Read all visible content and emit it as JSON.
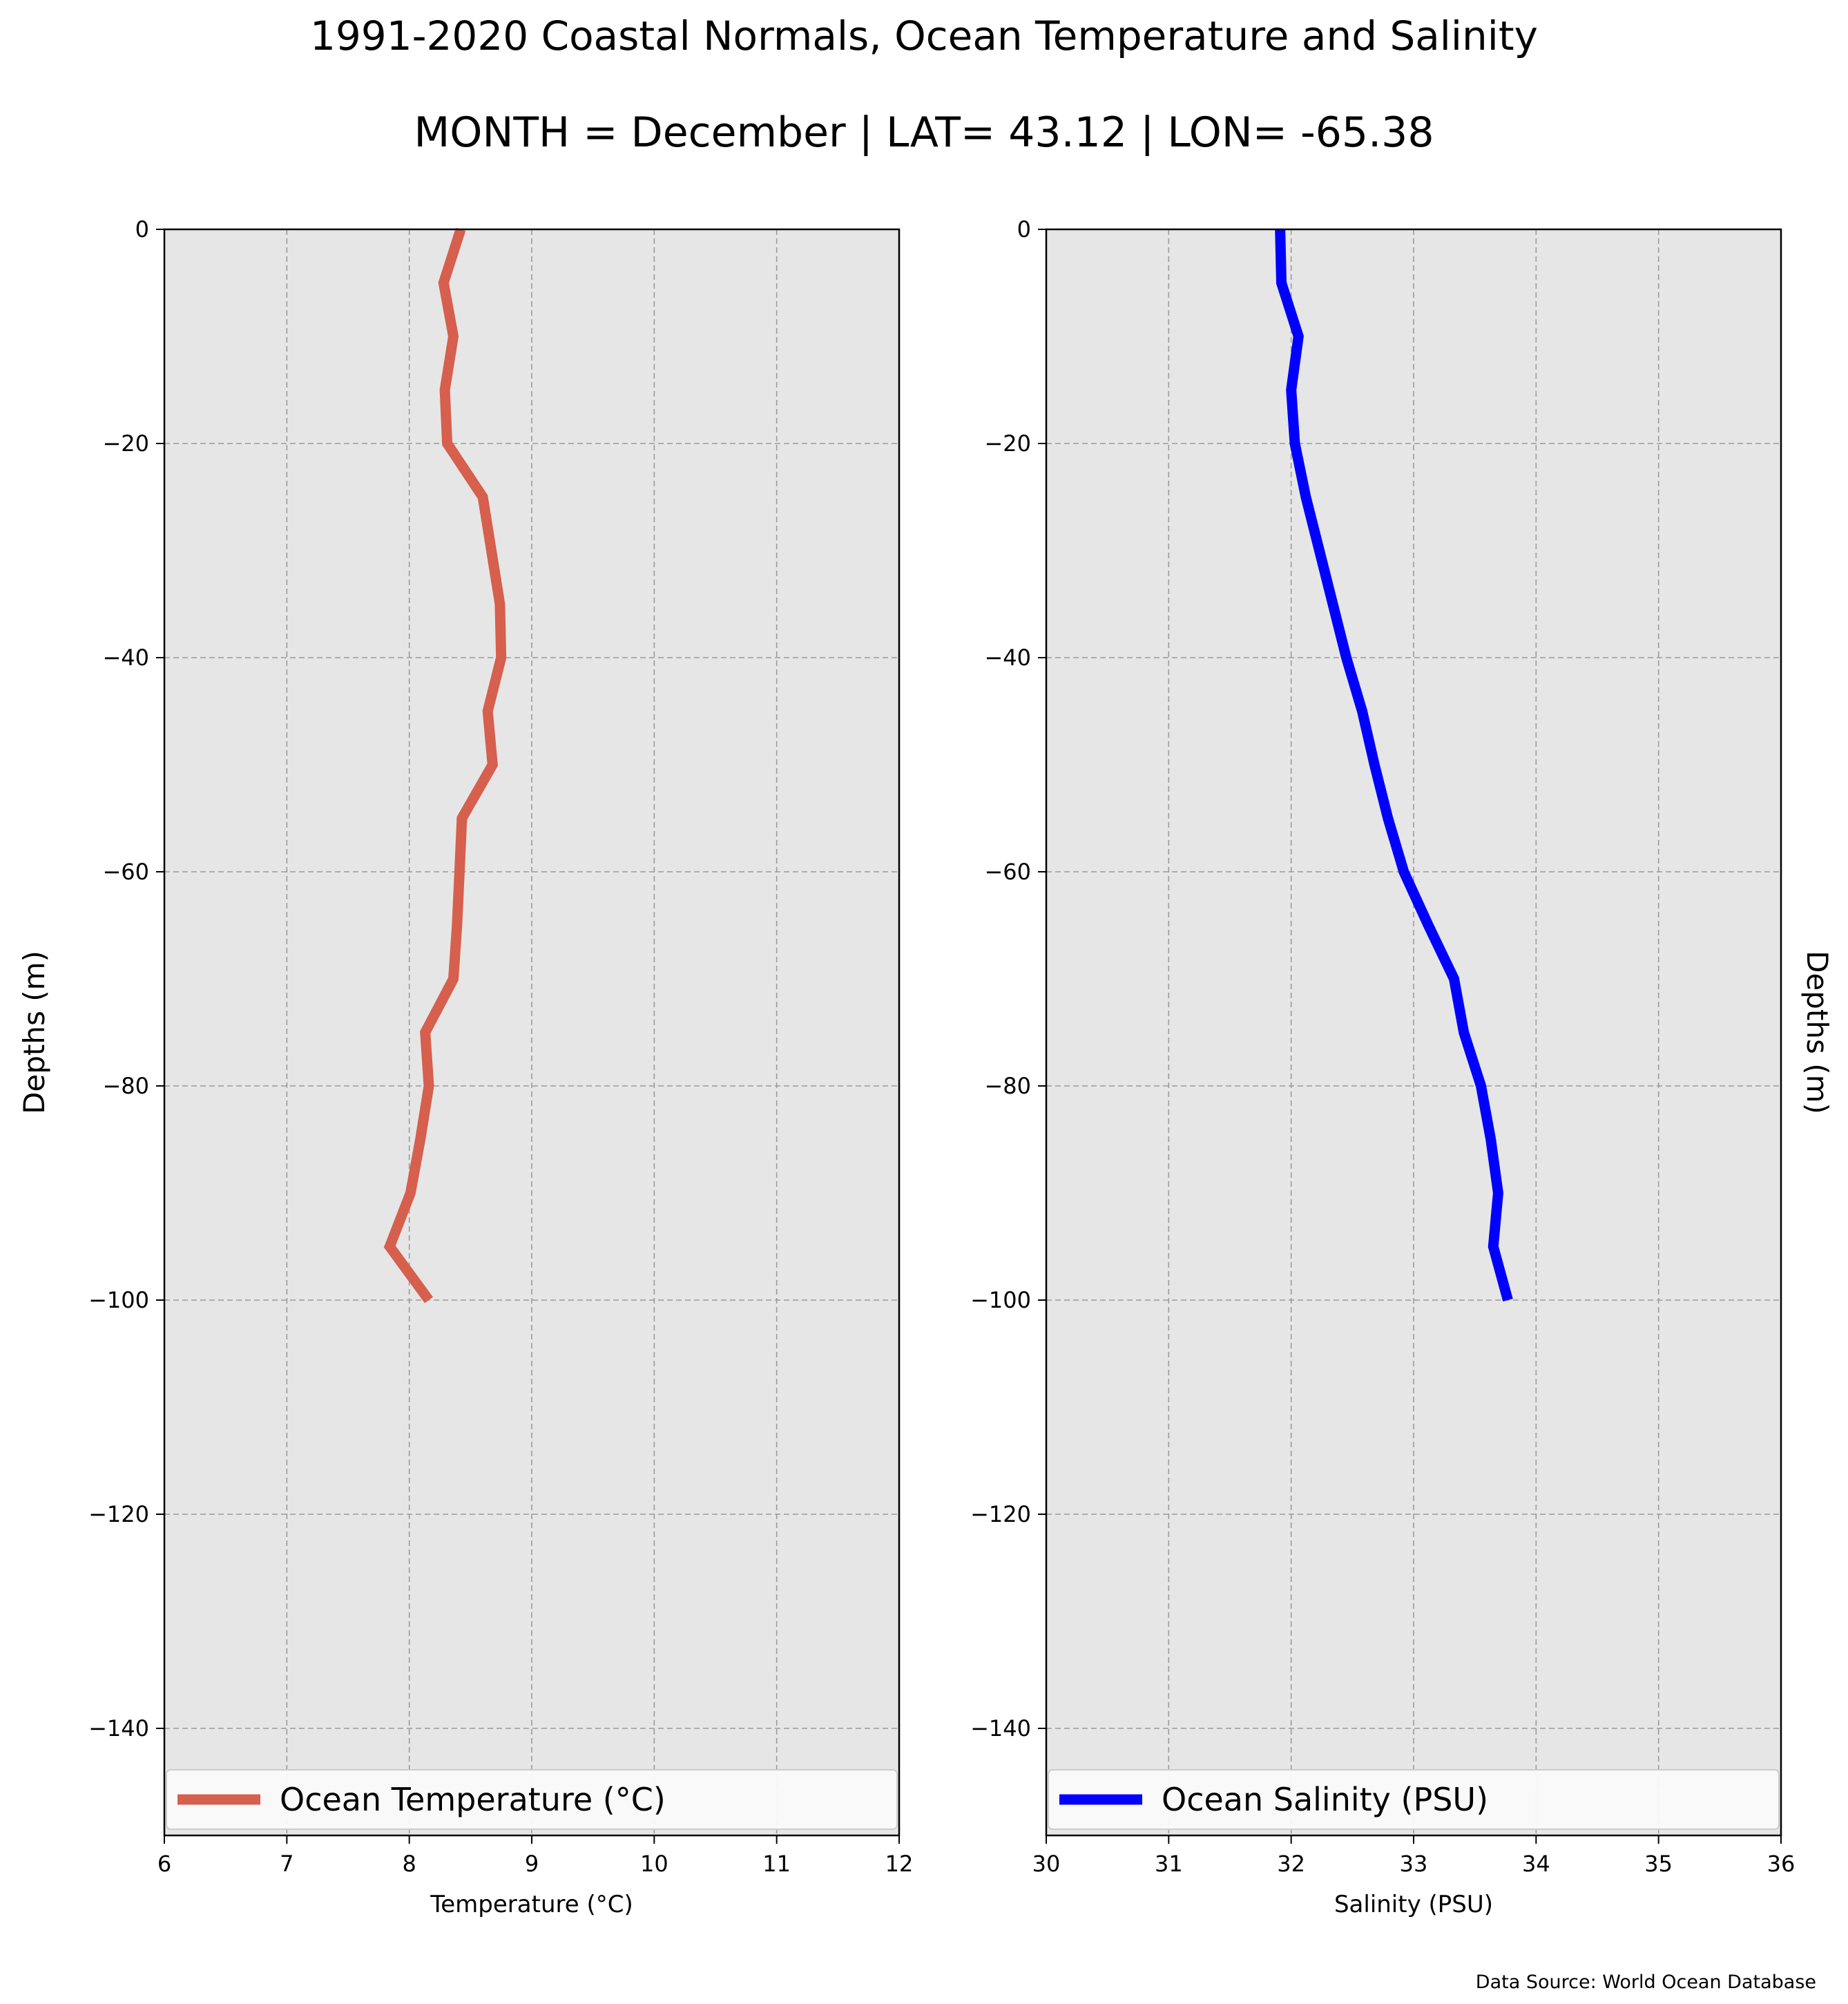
{
  "figure": {
    "title": "1991-2020 Coastal Normals, Ocean Temperature and Salinity",
    "subtitle": "MONTH = December | LAT= 43.12 | LON= -65.38",
    "source": "Data Source: World Ocean Database",
    "panel_background": "#e6e6e6"
  },
  "chart_data": [
    {
      "type": "line",
      "title": "",
      "xlabel": "Temperature ($^\\circ$C)",
      "xlabel_display": "Temperature (°C)",
      "ylabel": "Depths (m)",
      "ylabel_side": "left",
      "xlim": [
        6,
        12
      ],
      "ylim": [
        -150,
        0
      ],
      "xticks": [
        6,
        7,
        8,
        9,
        10,
        11,
        12
      ],
      "yticks": [
        0,
        -20,
        -40,
        -60,
        -80,
        -100,
        -120,
        -140
      ],
      "grid": true,
      "legend": "lower-center",
      "series": [
        {
          "name": "Ocean Temperature (°C)",
          "color": "#d65f4d",
          "points": [
            {
              "x": 8.42,
              "y": 0
            },
            {
              "x": 8.28,
              "y": -5
            },
            {
              "x": 8.36,
              "y": -10
            },
            {
              "x": 8.29,
              "y": -15
            },
            {
              "x": 8.31,
              "y": -20
            },
            {
              "x": 8.6,
              "y": -25
            },
            {
              "x": 8.67,
              "y": -30
            },
            {
              "x": 8.74,
              "y": -35
            },
            {
              "x": 8.75,
              "y": -40
            },
            {
              "x": 8.64,
              "y": -45
            },
            {
              "x": 8.68,
              "y": -50
            },
            {
              "x": 8.43,
              "y": -55
            },
            {
              "x": 8.41,
              "y": -60
            },
            {
              "x": 8.39,
              "y": -65
            },
            {
              "x": 8.36,
              "y": -70
            },
            {
              "x": 8.13,
              "y": -75
            },
            {
              "x": 8.16,
              "y": -80
            },
            {
              "x": 8.09,
              "y": -85
            },
            {
              "x": 8.01,
              "y": -90
            },
            {
              "x": 7.84,
              "y": -95
            },
            {
              "x": 8.16,
              "y": -100
            }
          ]
        }
      ]
    },
    {
      "type": "line",
      "title": "",
      "xlabel": "Salinity (PSU)",
      "ylabel": "Depths (m)",
      "ylabel_side": "right",
      "xlim": [
        30,
        36
      ],
      "ylim": [
        -150,
        0
      ],
      "xticks": [
        30,
        31,
        32,
        33,
        34,
        35,
        36
      ],
      "yticks": [
        0,
        -20,
        -40,
        -60,
        -80,
        -100,
        -120,
        -140
      ],
      "grid": true,
      "legend": "lower-center",
      "series": [
        {
          "name": "Ocean Salinity (PSU)",
          "color": "#0000ff",
          "points": [
            {
              "x": 31.91,
              "y": 0
            },
            {
              "x": 31.92,
              "y": -5
            },
            {
              "x": 32.06,
              "y": -10
            },
            {
              "x": 32.0,
              "y": -15
            },
            {
              "x": 32.03,
              "y": -20
            },
            {
              "x": 32.12,
              "y": -25
            },
            {
              "x": 32.23,
              "y": -30
            },
            {
              "x": 32.34,
              "y": -35
            },
            {
              "x": 32.45,
              "y": -40
            },
            {
              "x": 32.58,
              "y": -45
            },
            {
              "x": 32.68,
              "y": -50
            },
            {
              "x": 32.79,
              "y": -55
            },
            {
              "x": 32.92,
              "y": -60
            },
            {
              "x": 33.12,
              "y": -65
            },
            {
              "x": 33.33,
              "y": -70
            },
            {
              "x": 33.41,
              "y": -75
            },
            {
              "x": 33.55,
              "y": -80
            },
            {
              "x": 33.63,
              "y": -85
            },
            {
              "x": 33.69,
              "y": -90
            },
            {
              "x": 33.65,
              "y": -95
            },
            {
              "x": 33.77,
              "y": -100
            }
          ]
        }
      ]
    }
  ]
}
